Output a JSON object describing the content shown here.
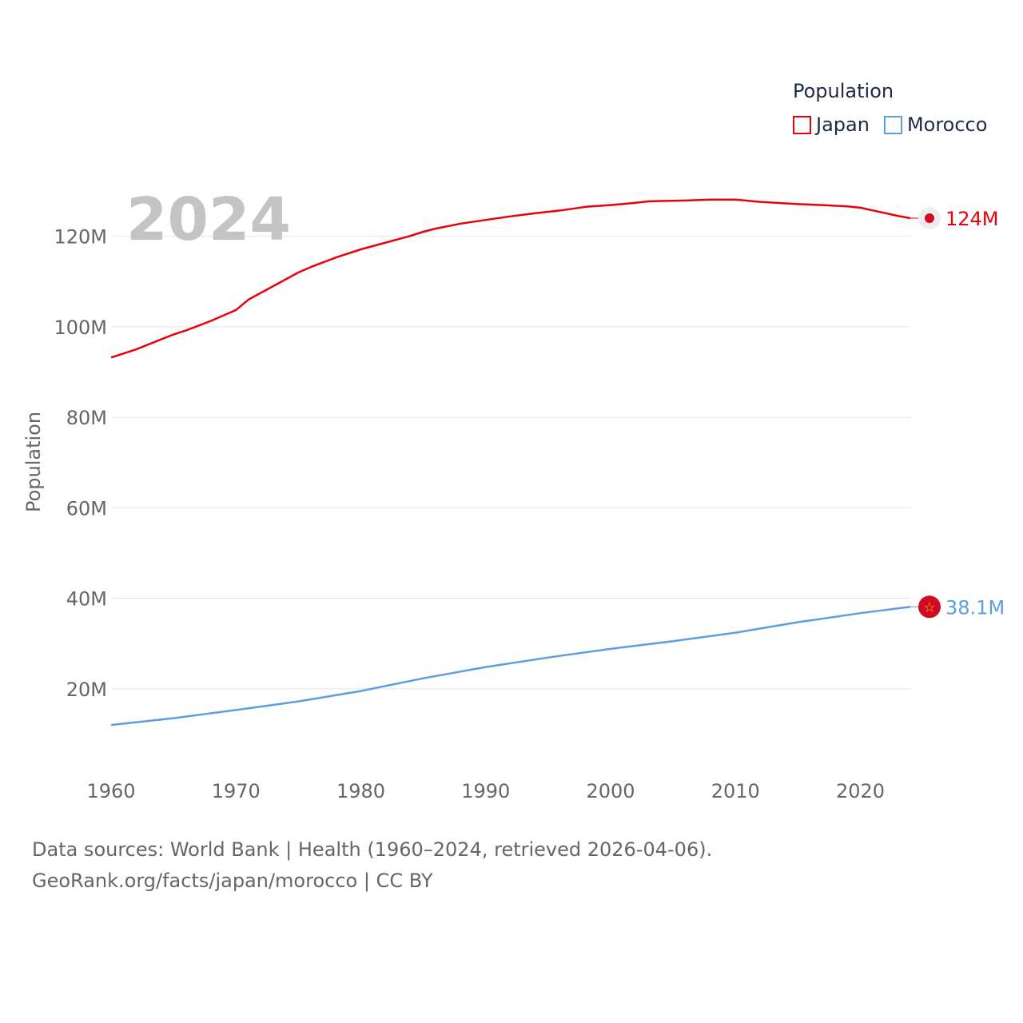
{
  "chart_data": {
    "type": "line",
    "title": "Population",
    "ylabel": "Population",
    "xlabel": "",
    "year_label": "2024",
    "xlim": [
      1960,
      2024
    ],
    "ylim": [
      0,
      130000000
    ],
    "x_ticks": [
      1960,
      1970,
      1980,
      1990,
      2000,
      2010,
      2020
    ],
    "y_ticks": [
      20000000,
      40000000,
      60000000,
      80000000,
      100000000,
      120000000
    ],
    "y_tick_labels": [
      "20M",
      "40M",
      "60M",
      "80M",
      "100M",
      "120M"
    ],
    "grid": true,
    "legend_position": "top-right",
    "series": [
      {
        "name": "Japan",
        "color": "#e8000b",
        "end_label": "124M",
        "marker_icon": "japan-flag-icon",
        "points": [
          [
            1960,
            93.2
          ],
          [
            1962,
            95.0
          ],
          [
            1964,
            97.2
          ],
          [
            1965,
            98.3
          ],
          [
            1966,
            99.2
          ],
          [
            1968,
            101.3
          ],
          [
            1970,
            103.7
          ],
          [
            1971,
            106.0
          ],
          [
            1972,
            107.5
          ],
          [
            1974,
            110.5
          ],
          [
            1975,
            112.0
          ],
          [
            1976,
            113.2
          ],
          [
            1978,
            115.3
          ],
          [
            1980,
            117.1
          ],
          [
            1982,
            118.6
          ],
          [
            1984,
            120.1
          ],
          [
            1985,
            121.0
          ],
          [
            1986,
            121.7
          ],
          [
            1988,
            122.8
          ],
          [
            1990,
            123.6
          ],
          [
            1992,
            124.4
          ],
          [
            1994,
            125.1
          ],
          [
            1995,
            125.4
          ],
          [
            1996,
            125.7
          ],
          [
            1998,
            126.5
          ],
          [
            2000,
            126.9
          ],
          [
            2002,
            127.4
          ],
          [
            2003,
            127.7
          ],
          [
            2004,
            127.8
          ],
          [
            2006,
            127.9
          ],
          [
            2008,
            128.1
          ],
          [
            2010,
            128.1
          ],
          [
            2012,
            127.6
          ],
          [
            2015,
            127.1
          ],
          [
            2017,
            126.9
          ],
          [
            2019,
            126.6
          ],
          [
            2020,
            126.3
          ],
          [
            2021,
            125.7
          ],
          [
            2022,
            125.1
          ],
          [
            2023,
            124.5
          ],
          [
            2024,
            124.0
          ]
        ]
      },
      {
        "name": "Morocco",
        "color": "#5b9fe3",
        "end_label": "38.1M",
        "marker_icon": "morocco-flag-icon",
        "points": [
          [
            1960,
            12.0
          ],
          [
            1965,
            13.5
          ],
          [
            1970,
            15.3
          ],
          [
            1975,
            17.2
          ],
          [
            1980,
            19.5
          ],
          [
            1985,
            22.3
          ],
          [
            1990,
            24.8
          ],
          [
            1995,
            26.9
          ],
          [
            2000,
            28.8
          ],
          [
            2005,
            30.5
          ],
          [
            2010,
            32.4
          ],
          [
            2015,
            34.7
          ],
          [
            2020,
            36.7
          ],
          [
            2024,
            38.1
          ]
        ]
      }
    ]
  },
  "legend": {
    "title": "Population",
    "items": [
      {
        "label": "Japan",
        "color": "#e8000b"
      },
      {
        "label": "Morocco",
        "color": "#5b9fe3"
      }
    ]
  },
  "footer": {
    "line1": "Data sources: World Bank | Health (1960–2024, retrieved 2026-04-06).",
    "line2": "GeoRank.org/facts/japan/morocco | CC BY"
  }
}
